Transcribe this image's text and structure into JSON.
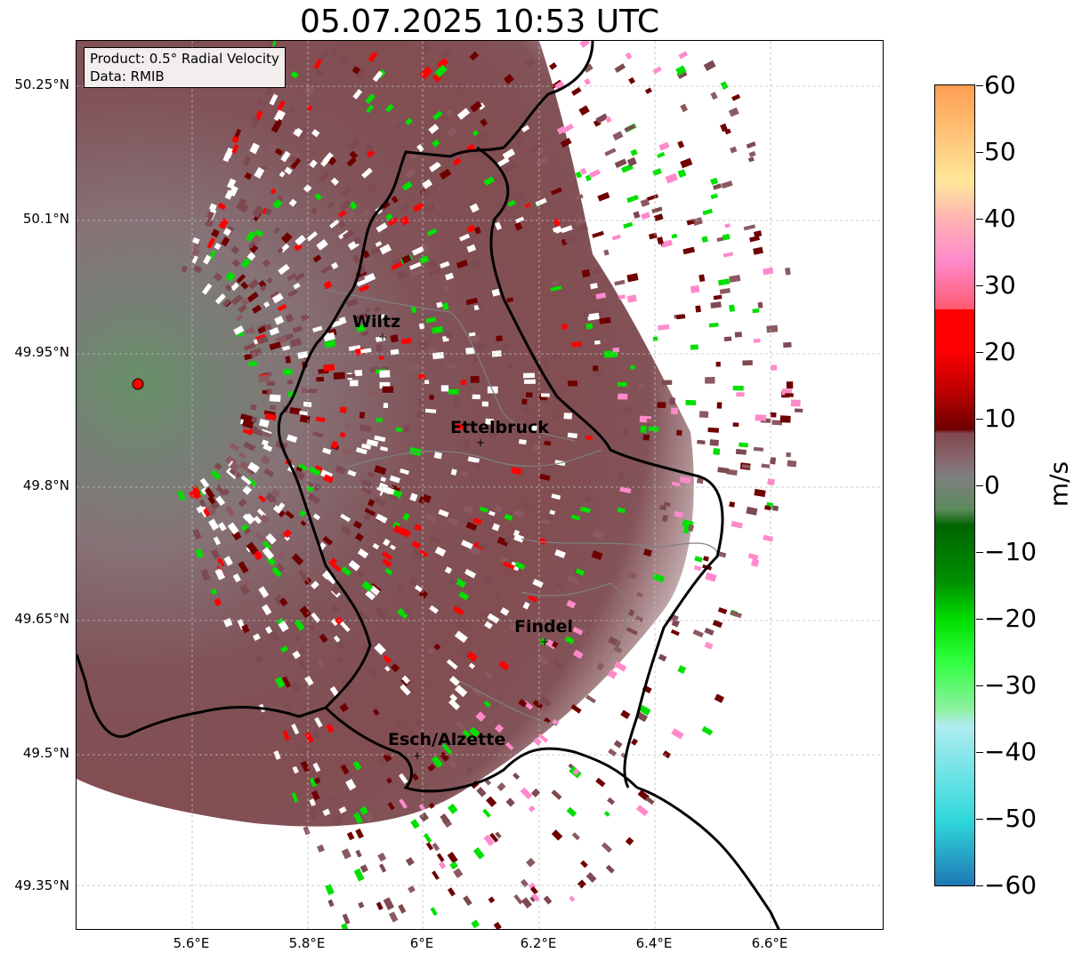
{
  "title": "05.07.2025 10:53 UTC",
  "info": {
    "product": "Product: 0.5° Radial Velocity",
    "source": "Data: RMIB"
  },
  "lat_labels": [
    "50.25°N",
    "50.1°N",
    "49.95°N",
    "49.8°N",
    "49.65°N",
    "49.5°N",
    "49.35°N"
  ],
  "lon_labels": [
    "5.6°E",
    "5.8°E",
    "6°E",
    "6.2°E",
    "6.4°E",
    "6.6°E"
  ],
  "cities": [
    {
      "name": "Wiltz"
    },
    {
      "name": "Ettelbruck"
    },
    {
      "name": "Findel"
    },
    {
      "name": "Esch/Alzette"
    }
  ],
  "colorbar": {
    "unit": "m/s",
    "ticks": [
      "60",
      "50",
      "40",
      "30",
      "20",
      "10",
      "0",
      "−10",
      "−20",
      "−30",
      "−40",
      "−50",
      "−60"
    ],
    "range": [
      -60,
      60
    ]
  },
  "colors": {
    "negative_strong": "#1f77b4",
    "cyan": "#2ed7db",
    "light_cyan": "#b1ecef",
    "light_green": "#8ef0a0",
    "green": "#00e000",
    "dark_green": "#006400",
    "near_zero_neg": "#5c8a5c",
    "near_zero": "#7f7f7f",
    "near_zero_pos": "#7d4a52",
    "dark_red": "#6e0000",
    "red": "#ff0000",
    "pink": "#ff8acb",
    "light_pink": "#ffb0b4",
    "pale_yellow": "#ffe79a",
    "orange": "#ff9e52"
  }
}
